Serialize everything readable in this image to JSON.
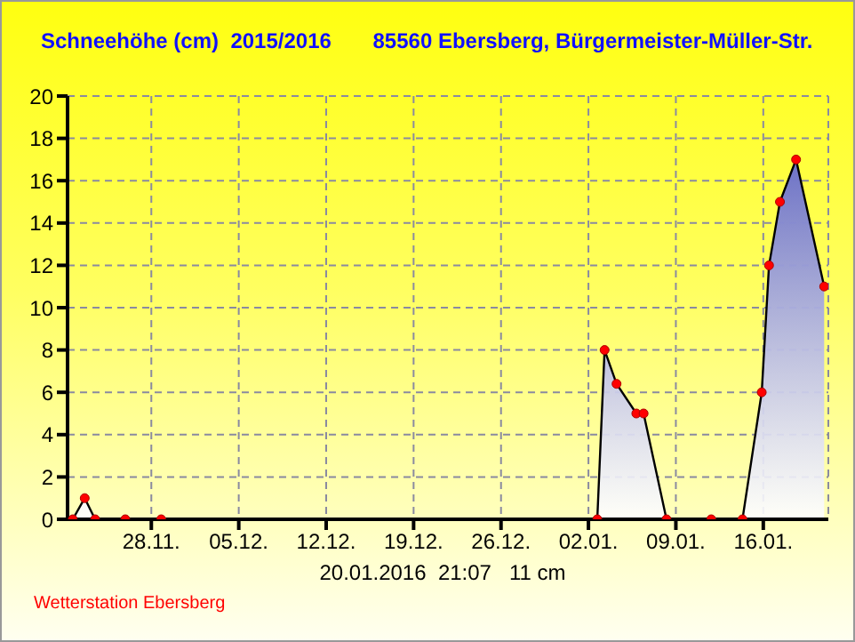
{
  "chart_data": {
    "type": "area",
    "title": "Schneehöhe (cm)  2015/2016       85560 Ebersberg, Bürgermeister-Müller-Str.",
    "x": [
      "2015-11-21T17:00",
      "2015-11-22T16:00",
      "2015-11-23T12:00",
      "2015-11-25T22:00",
      "2015-11-28T19:00",
      "2016-01-02T17:00",
      "2016-01-03T07:00",
      "2016-01-04T06:00",
      "2016-01-05T20:00",
      "2016-01-06T10:00",
      "2016-01-08T06:00",
      "2016-01-11T20:00",
      "2016-01-14T08:00",
      "2016-01-15T21:00",
      "2016-01-16T11:00",
      "2016-01-17T08:00",
      "2016-01-18T15:00",
      "2016-01-20T21:00"
    ],
    "series": [
      {
        "color": "#6d72c6",
        "values": [
          0,
          1,
          0,
          0,
          0,
          0,
          8,
          6.4,
          5,
          5,
          0,
          0,
          0,
          6,
          12,
          15,
          17,
          11
        ]
      }
    ],
    "xlim": [
      "2015-11-21T07:00",
      "2016-01-21T05:00"
    ],
    "xticks": [
      {
        "value": "2015-11-28",
        "label": "28.11."
      },
      {
        "value": "2015-12-05",
        "label": "05.12."
      },
      {
        "value": "2015-12-12",
        "label": "12.12."
      },
      {
        "value": "2015-12-19",
        "label": "19.12."
      },
      {
        "value": "2015-12-26",
        "label": "26.12."
      },
      {
        "value": "2016-01-02",
        "label": "02.01."
      },
      {
        "value": "2016-01-09",
        "label": "09.01."
      },
      {
        "value": "2016-01-16",
        "label": "16.01."
      }
    ],
    "ylim": [
      0,
      20
    ],
    "yticks": [
      0,
      2,
      4,
      6,
      8,
      10,
      12,
      14,
      16,
      18,
      20
    ],
    "grid": true,
    "marker": "circle",
    "annotations": [
      "20.01.2016  21:07   11 cm",
      "Wetterstation Ebersberg"
    ]
  }
}
